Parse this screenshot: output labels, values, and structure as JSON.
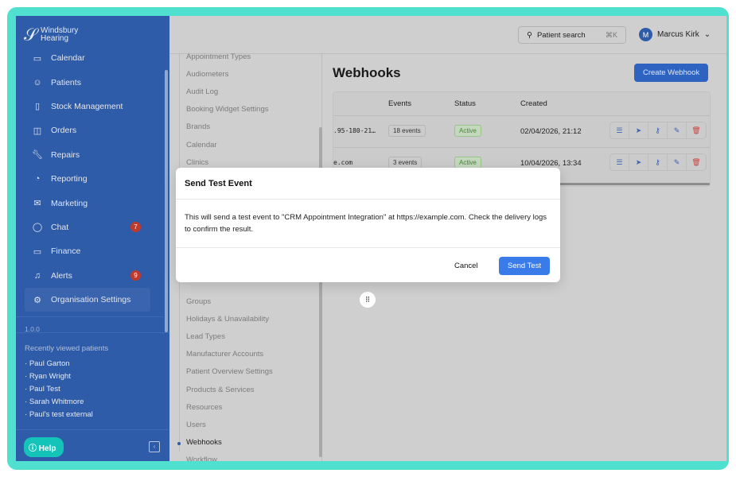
{
  "brand": {
    "name_line1": "Windsbury",
    "name_line2": "Hearing"
  },
  "sidebar": {
    "items": [
      {
        "label": "Calendar",
        "icon": "calendar-icon"
      },
      {
        "label": "Patients",
        "icon": "smiley-icon"
      },
      {
        "label": "Stock Management",
        "icon": "clipboard-icon"
      },
      {
        "label": "Orders",
        "icon": "bag-icon"
      },
      {
        "label": "Repairs",
        "icon": "wrench-icon"
      },
      {
        "label": "Reporting",
        "icon": "pie-chart-icon"
      },
      {
        "label": "Marketing",
        "icon": "mail-icon"
      },
      {
        "label": "Chat",
        "icon": "chat-icon",
        "badge": "7"
      },
      {
        "label": "Finance",
        "icon": "card-icon"
      },
      {
        "label": "Alerts",
        "icon": "bell-icon",
        "badge": "9"
      },
      {
        "label": "Organisation Settings",
        "icon": "gear-icon",
        "active": true
      }
    ],
    "version": "1.0.0",
    "recent_title": "Recently viewed patients",
    "recent": [
      "Paul Garton",
      "Ryan Wright",
      "Paul Test",
      "Sarah Whitmore",
      "Paul's test external"
    ],
    "help": "Help"
  },
  "header": {
    "search_label": "Patient search",
    "search_shortcut": "⌘K",
    "user_initial": "M",
    "user_name": "Marcus Kirk"
  },
  "settings_nav": [
    "Appointment Types",
    "Audiometers",
    "Audit Log",
    "Booking Widget Settings",
    "Brands",
    "Calendar",
    "Clinics",
    "Groups",
    "Holidays & Unavailability",
    "Lead Types",
    "Manufacturer Accounts",
    "Patient Overview Settings",
    "Products & Services",
    "Resources",
    "Users",
    "Webhooks",
    "Workflow"
  ],
  "main": {
    "title": "Webhooks",
    "create_button": "Create Webhook",
    "columns": [
      "Events",
      "Status",
      "Created"
    ],
    "rows": [
      {
        "url": ".95-180-21…",
        "events": "18 events",
        "status": "Active",
        "created": "02/04/2026, 21:12"
      },
      {
        "url": "e.com",
        "events": "3 events",
        "status": "Active",
        "created": "10/04/2026, 13:34"
      }
    ]
  },
  "modal": {
    "title": "Send Test Event",
    "body": "This will send a test event to \"CRM Appointment Integration\" at https://example.com. Check the delivery logs to confirm the result.",
    "cancel": "Cancel",
    "confirm": "Send Test"
  },
  "colors": {
    "frame": "#4fe0cf",
    "sidebar": "#2f5ca8",
    "primary": "#3a7bea",
    "danger": "#d04040",
    "success": "#3f8a2f"
  }
}
